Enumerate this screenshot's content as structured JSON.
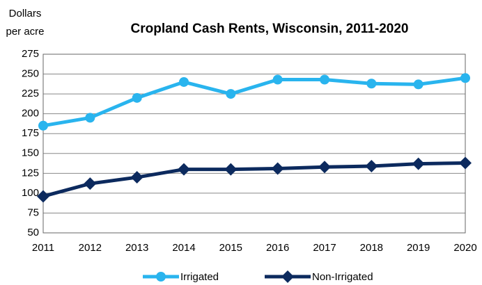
{
  "chart_data": {
    "type": "line",
    "title": "Cropland Cash Rents, Wisconsin, 2011-2020",
    "y_label": [
      "Dollars",
      "per acre"
    ],
    "x": [
      2011,
      2012,
      2013,
      2014,
      2015,
      2016,
      2017,
      2018,
      2019,
      2020
    ],
    "xlim": [
      2011,
      2020
    ],
    "xticks": [
      2011,
      2012,
      2013,
      2014,
      2015,
      2016,
      2017,
      2018,
      2019,
      2020
    ],
    "ylim": [
      50,
      275
    ],
    "yticks": [
      50,
      75,
      100,
      125,
      150,
      175,
      200,
      225,
      250,
      275
    ],
    "grid": true,
    "legend": "bottom",
    "series": [
      {
        "name": "Irrigated",
        "color": "#29b4ee",
        "marker": "circle",
        "values": [
          185,
          195,
          220,
          240,
          225,
          243,
          243,
          238,
          237,
          245
        ]
      },
      {
        "name": "Non-Irrigated",
        "color": "#0c2a5e",
        "marker": "diamond",
        "values": [
          96,
          112,
          120,
          130,
          130,
          131,
          133,
          134,
          137,
          138
        ]
      }
    ]
  }
}
